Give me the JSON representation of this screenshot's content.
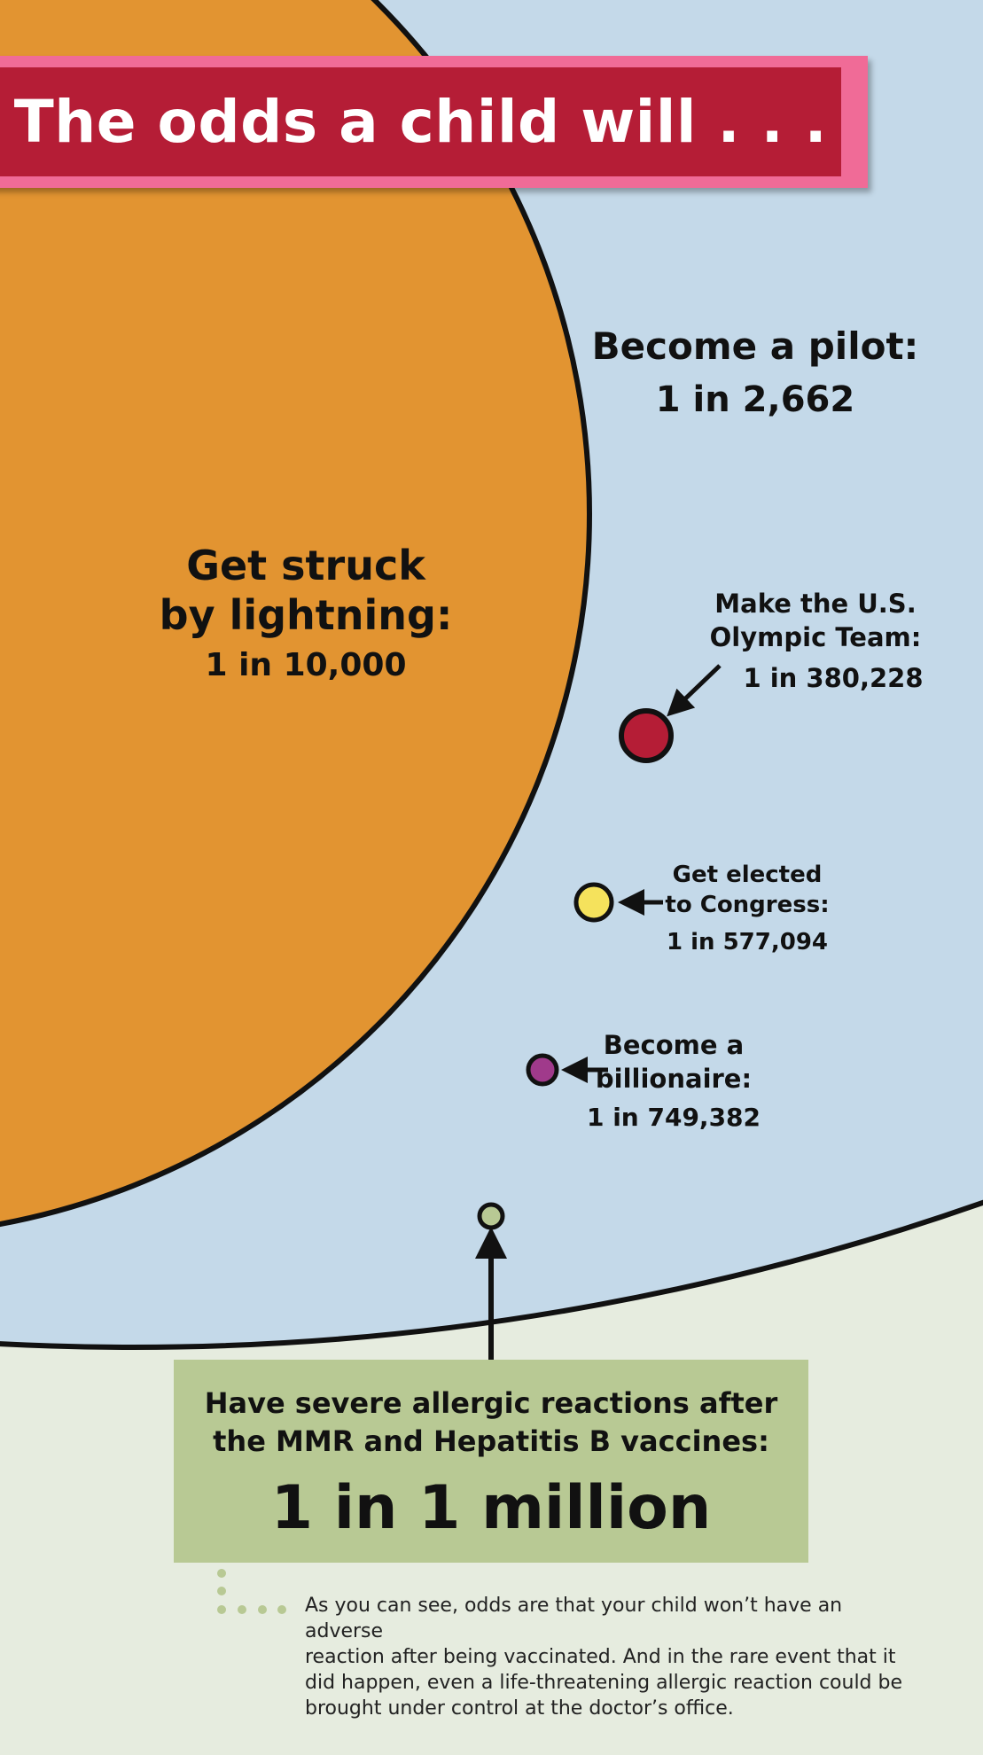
{
  "title": "The odds a child will . . .",
  "colors": {
    "lightning": "#e29431",
    "sky": "#c4d9e9",
    "ground": "#e6ecdf",
    "olympic": "#b51d36",
    "congress": "#f5e25c",
    "billionaire": "#a03a8b",
    "allergy": "#b8c994",
    "banner": "#b51d36",
    "banner_border": "#f06b97"
  },
  "events": {
    "lightning": {
      "label_lines": [
        "Get struck",
        "by lightning:"
      ],
      "odds": "1 in 10,000"
    },
    "pilot": {
      "label": "Become a pilot:",
      "odds": "1 in 2,662"
    },
    "olympic": {
      "label_lines": [
        "Make the U.S.",
        "Olympic Team:"
      ],
      "odds": "1 in 380,228"
    },
    "congress": {
      "label_lines": [
        "Get elected",
        "to Congress:"
      ],
      "odds": "1 in 577,094"
    },
    "billionaire": {
      "label_lines": [
        "Become a",
        "billionaire:"
      ],
      "odds": "1 in 749,382"
    },
    "allergy": {
      "label_lines": [
        "Have severe allergic reactions after",
        "the MMR and Hepatitis B vaccines:"
      ],
      "odds": "1 in 1 million"
    }
  },
  "footnote_lines": [
    "As you can see, odds are that your child won’t have an adverse",
    "reaction after being vaccinated. And in the rare event that it",
    "did happen, even a life-threatening allergic reaction could be",
    "brought under control at the doctor’s office."
  ]
}
